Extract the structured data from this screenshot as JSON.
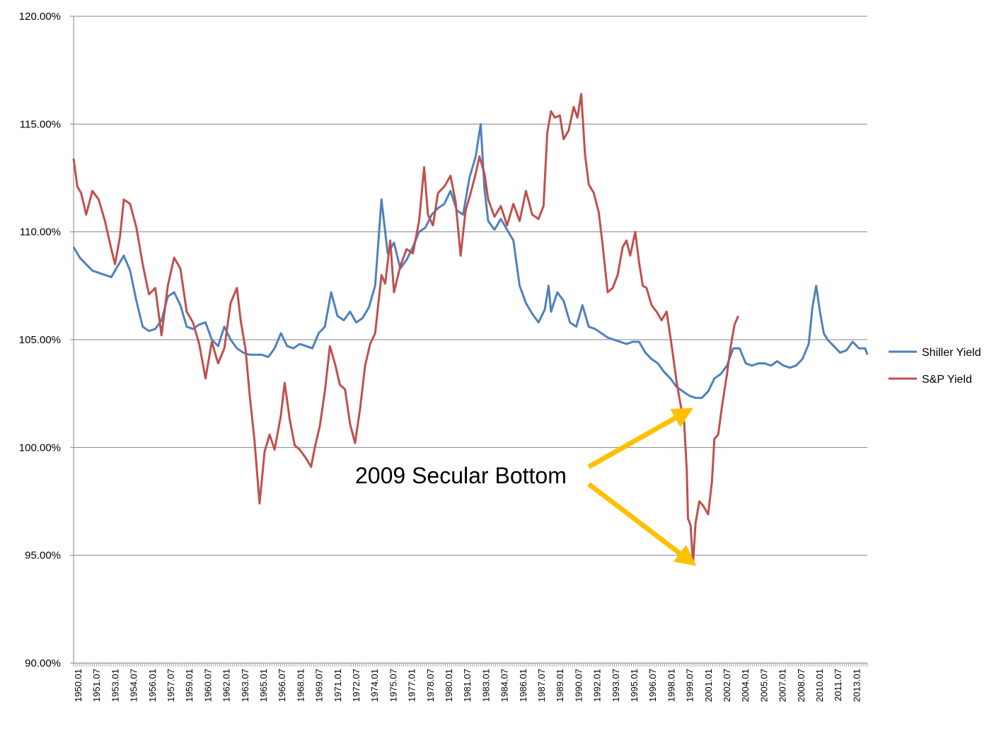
{
  "chart_data": {
    "type": "line",
    "title": "",
    "xlabel": "",
    "ylabel": "",
    "ylim": [
      90,
      120
    ],
    "y_ticks": [
      "90.00%",
      "95.00%",
      "100.00%",
      "105.00%",
      "110.00%",
      "115.00%",
      "120.00%"
    ],
    "x_range": [
      1950.0,
      2013.17
    ],
    "x_tick_labels": [
      "1950.01",
      "1951.07",
      "1953.01",
      "1954.07",
      "1956.01",
      "1957.07",
      "1959.01",
      "1960.07",
      "1962.01",
      "1963.07",
      "1965.01",
      "1966.07",
      "1968.01",
      "1969.07",
      "1971.01",
      "1972.07",
      "1974.01",
      "1975.07",
      "1977.01",
      "1978.07",
      "1980.01",
      "1981.07",
      "1983.01",
      "1984.07",
      "1986.01",
      "1987.07",
      "1989.01",
      "1990.07",
      "1992.01",
      "1993.07",
      "1995.01",
      "1996.07",
      "1998.01",
      "1999.07",
      "2001.01",
      "2002.07",
      "2004.01",
      "2005.07",
      "2007.01",
      "2008.07",
      "2010.01",
      "2011.07",
      "2013.01"
    ],
    "grid": "horizontal",
    "legend": "right",
    "series": [
      {
        "name": "Shiller Yield",
        "color": "#4F81BD",
        "points": [
          [
            1950.0,
            109.3
          ],
          [
            1950.5,
            108.8
          ],
          [
            1951.0,
            108.5
          ],
          [
            1951.5,
            108.2
          ],
          [
            1952.0,
            108.1
          ],
          [
            1952.5,
            108.0
          ],
          [
            1953.0,
            107.9
          ],
          [
            1953.5,
            108.4
          ],
          [
            1954.0,
            108.9
          ],
          [
            1954.5,
            108.2
          ],
          [
            1955.0,
            106.8
          ],
          [
            1955.5,
            105.6
          ],
          [
            1956.0,
            105.4
          ],
          [
            1956.5,
            105.5
          ],
          [
            1957.0,
            105.9
          ],
          [
            1957.5,
            107.0
          ],
          [
            1958.0,
            107.2
          ],
          [
            1958.5,
            106.6
          ],
          [
            1959.0,
            105.6
          ],
          [
            1959.5,
            105.5
          ],
          [
            1960.0,
            105.7
          ],
          [
            1960.5,
            105.8
          ],
          [
            1961.0,
            105.0
          ],
          [
            1961.5,
            104.7
          ],
          [
            1962.0,
            105.6
          ],
          [
            1962.5,
            105.0
          ],
          [
            1963.0,
            104.6
          ],
          [
            1963.5,
            104.4
          ],
          [
            1964.0,
            104.3
          ],
          [
            1964.5,
            104.3
          ],
          [
            1965.0,
            104.3
          ],
          [
            1965.5,
            104.2
          ],
          [
            1966.0,
            104.6
          ],
          [
            1966.5,
            105.3
          ],
          [
            1967.0,
            104.7
          ],
          [
            1967.5,
            104.6
          ],
          [
            1968.0,
            104.8
          ],
          [
            1968.5,
            104.7
          ],
          [
            1969.0,
            104.6
          ],
          [
            1969.5,
            105.3
          ],
          [
            1970.0,
            105.6
          ],
          [
            1970.5,
            107.2
          ],
          [
            1971.0,
            106.1
          ],
          [
            1971.5,
            105.9
          ],
          [
            1972.0,
            106.3
          ],
          [
            1972.5,
            105.8
          ],
          [
            1973.0,
            106.0
          ],
          [
            1973.5,
            106.5
          ],
          [
            1974.0,
            107.5
          ],
          [
            1974.5,
            111.5
          ],
          [
            1975.0,
            109.0
          ],
          [
            1975.5,
            109.5
          ],
          [
            1976.0,
            108.3
          ],
          [
            1976.5,
            108.7
          ],
          [
            1977.0,
            109.3
          ],
          [
            1977.5,
            110.0
          ],
          [
            1978.0,
            110.2
          ],
          [
            1978.5,
            110.8
          ],
          [
            1979.0,
            111.1
          ],
          [
            1979.5,
            111.3
          ],
          [
            1980.0,
            111.9
          ],
          [
            1980.5,
            111.0
          ],
          [
            1981.0,
            110.8
          ],
          [
            1981.5,
            112.5
          ],
          [
            1982.0,
            113.5
          ],
          [
            1982.4,
            115.0
          ],
          [
            1982.7,
            112.0
          ],
          [
            1983.0,
            110.5
          ],
          [
            1983.5,
            110.1
          ],
          [
            1984.0,
            110.6
          ],
          [
            1984.5,
            110.1
          ],
          [
            1985.0,
            109.6
          ],
          [
            1985.5,
            107.5
          ],
          [
            1986.0,
            106.7
          ],
          [
            1986.5,
            106.2
          ],
          [
            1987.0,
            105.8
          ],
          [
            1987.5,
            106.4
          ],
          [
            1987.8,
            107.5
          ],
          [
            1988.0,
            106.3
          ],
          [
            1988.5,
            107.2
          ],
          [
            1989.0,
            106.8
          ],
          [
            1989.5,
            105.8
          ],
          [
            1990.0,
            105.6
          ],
          [
            1990.5,
            106.6
          ],
          [
            1991.0,
            105.6
          ],
          [
            1991.5,
            105.5
          ],
          [
            1992.0,
            105.3
          ],
          [
            1992.5,
            105.1
          ],
          [
            1993.0,
            105.0
          ],
          [
            1993.5,
            104.9
          ],
          [
            1994.0,
            104.8
          ],
          [
            1994.5,
            104.9
          ],
          [
            1995.0,
            104.9
          ],
          [
            1995.5,
            104.4
          ],
          [
            1996.0,
            104.1
          ],
          [
            1996.5,
            103.9
          ],
          [
            1997.0,
            103.5
          ],
          [
            1997.5,
            103.2
          ],
          [
            1998.0,
            102.8
          ],
          [
            1998.5,
            102.6
          ],
          [
            1999.0,
            102.4
          ],
          [
            1999.5,
            102.3
          ],
          [
            2000.0,
            102.3
          ],
          [
            2000.5,
            102.6
          ],
          [
            2001.0,
            103.2
          ],
          [
            2001.5,
            103.4
          ],
          [
            2002.0,
            103.8
          ],
          [
            2002.5,
            104.6
          ],
          [
            2003.0,
            104.6
          ],
          [
            2003.5,
            103.9
          ],
          [
            2004.0,
            103.8
          ],
          [
            2004.5,
            103.9
          ],
          [
            2005.0,
            103.9
          ],
          [
            2005.5,
            103.8
          ],
          [
            2006.0,
            104.0
          ],
          [
            2006.5,
            103.8
          ],
          [
            2007.0,
            103.7
          ],
          [
            2007.5,
            103.8
          ],
          [
            2008.0,
            104.1
          ],
          [
            2008.5,
            104.8
          ],
          [
            2008.8,
            106.5
          ],
          [
            2009.1,
            107.5
          ],
          [
            2009.4,
            106.3
          ],
          [
            2009.7,
            105.3
          ],
          [
            2010.0,
            105.0
          ],
          [
            2010.5,
            104.7
          ],
          [
            2011.0,
            104.4
          ],
          [
            2011.5,
            104.5
          ],
          [
            2012.0,
            104.9
          ],
          [
            2012.5,
            104.6
          ],
          [
            2013.0,
            104.6
          ],
          [
            2013.17,
            104.3
          ]
        ]
      },
      {
        "name": "S&P Yield",
        "color": "#C0504D",
        "points": [
          [
            1950.0,
            113.4
          ],
          [
            1950.3,
            112.1
          ],
          [
            1950.6,
            111.8
          ],
          [
            1951.0,
            110.8
          ],
          [
            1951.5,
            111.9
          ],
          [
            1952.0,
            111.5
          ],
          [
            1952.5,
            110.5
          ],
          [
            1953.0,
            109.2
          ],
          [
            1953.3,
            108.5
          ],
          [
            1953.7,
            109.8
          ],
          [
            1954.0,
            111.5
          ],
          [
            1954.5,
            111.3
          ],
          [
            1955.0,
            110.2
          ],
          [
            1955.5,
            108.5
          ],
          [
            1956.0,
            107.1
          ],
          [
            1956.5,
            107.4
          ],
          [
            1957.0,
            105.2
          ],
          [
            1957.5,
            107.5
          ],
          [
            1958.0,
            108.8
          ],
          [
            1958.5,
            108.3
          ],
          [
            1959.0,
            106.3
          ],
          [
            1959.5,
            105.8
          ],
          [
            1960.0,
            104.8
          ],
          [
            1960.5,
            103.2
          ],
          [
            1961.0,
            104.9
          ],
          [
            1961.5,
            103.9
          ],
          [
            1962.0,
            104.6
          ],
          [
            1962.5,
            106.7
          ],
          [
            1963.0,
            107.4
          ],
          [
            1963.3,
            105.9
          ],
          [
            1963.7,
            104.5
          ],
          [
            1964.0,
            102.5
          ],
          [
            1964.4,
            100.3
          ],
          [
            1964.8,
            97.4
          ],
          [
            1965.2,
            99.8
          ],
          [
            1965.6,
            100.6
          ],
          [
            1966.0,
            99.9
          ],
          [
            1966.5,
            101.5
          ],
          [
            1966.8,
            103.0
          ],
          [
            1967.2,
            101.3
          ],
          [
            1967.6,
            100.1
          ],
          [
            1968.0,
            99.9
          ],
          [
            1968.5,
            99.5
          ],
          [
            1968.9,
            99.1
          ],
          [
            1969.2,
            100.0
          ],
          [
            1969.6,
            101.0
          ],
          [
            1970.0,
            102.6
          ],
          [
            1970.4,
            104.7
          ],
          [
            1970.8,
            103.9
          ],
          [
            1971.2,
            102.9
          ],
          [
            1971.6,
            102.7
          ],
          [
            1972.0,
            101.1
          ],
          [
            1972.4,
            100.2
          ],
          [
            1972.8,
            101.8
          ],
          [
            1973.2,
            103.8
          ],
          [
            1973.6,
            104.8
          ],
          [
            1974.0,
            105.3
          ],
          [
            1974.5,
            108.0
          ],
          [
            1974.8,
            107.6
          ],
          [
            1975.2,
            109.6
          ],
          [
            1975.5,
            107.2
          ],
          [
            1976.0,
            108.4
          ],
          [
            1976.5,
            109.2
          ],
          [
            1977.0,
            109.0
          ],
          [
            1977.5,
            110.5
          ],
          [
            1977.9,
            113.0
          ],
          [
            1978.2,
            110.8
          ],
          [
            1978.6,
            110.3
          ],
          [
            1979.0,
            111.8
          ],
          [
            1979.5,
            112.1
          ],
          [
            1980.0,
            112.6
          ],
          [
            1980.4,
            111.4
          ],
          [
            1980.8,
            108.9
          ],
          [
            1981.2,
            111.0
          ],
          [
            1981.6,
            111.8
          ],
          [
            1982.0,
            112.7
          ],
          [
            1982.3,
            113.5
          ],
          [
            1982.7,
            112.7
          ],
          [
            1983.0,
            111.5
          ],
          [
            1983.5,
            110.7
          ],
          [
            1984.0,
            111.2
          ],
          [
            1984.5,
            110.3
          ],
          [
            1985.0,
            111.3
          ],
          [
            1985.5,
            110.5
          ],
          [
            1986.0,
            111.9
          ],
          [
            1986.5,
            110.8
          ],
          [
            1987.0,
            110.6
          ],
          [
            1987.4,
            111.2
          ],
          [
            1987.7,
            114.6
          ],
          [
            1988.0,
            115.6
          ],
          [
            1988.3,
            115.3
          ],
          [
            1988.7,
            115.4
          ],
          [
            1989.0,
            114.3
          ],
          [
            1989.4,
            114.7
          ],
          [
            1989.8,
            115.8
          ],
          [
            1990.1,
            115.3
          ],
          [
            1990.4,
            116.4
          ],
          [
            1990.7,
            113.6
          ],
          [
            1991.0,
            112.2
          ],
          [
            1991.4,
            111.8
          ],
          [
            1991.8,
            110.9
          ],
          [
            1992.1,
            109.4
          ],
          [
            1992.5,
            107.2
          ],
          [
            1992.9,
            107.4
          ],
          [
            1993.3,
            108.0
          ],
          [
            1993.7,
            109.3
          ],
          [
            1994.0,
            109.6
          ],
          [
            1994.3,
            108.9
          ],
          [
            1994.7,
            110.0
          ],
          [
            1995.0,
            108.6
          ],
          [
            1995.3,
            107.5
          ],
          [
            1995.6,
            107.4
          ],
          [
            1996.0,
            106.6
          ],
          [
            1996.4,
            106.3
          ],
          [
            1996.8,
            105.9
          ],
          [
            1997.2,
            106.3
          ],
          [
            1997.6,
            104.7
          ],
          [
            1998.0,
            103.0
          ],
          [
            1998.3,
            102.0
          ],
          [
            1998.6,
            101.1
          ],
          [
            1998.8,
            98.9
          ],
          [
            1998.9,
            96.7
          ],
          [
            1999.1,
            96.4
          ],
          [
            1999.3,
            94.6
          ],
          [
            1999.5,
            96.5
          ],
          [
            1999.8,
            97.5
          ],
          [
            2000.1,
            97.3
          ],
          [
            2000.5,
            96.9
          ],
          [
            2000.8,
            98.4
          ],
          [
            2001.0,
            100.4
          ],
          [
            2001.3,
            100.6
          ],
          [
            2001.6,
            101.9
          ],
          [
            2002.0,
            103.4
          ],
          [
            2002.3,
            104.7
          ],
          [
            2002.6,
            105.7
          ],
          [
            2002.9,
            106.1
          ]
        ]
      }
    ],
    "annotation": {
      "text": "2009 Secular Bottom",
      "color": "#FFC000",
      "arrows": [
        {
          "from": [
            1991.0,
            99.1
          ],
          "to": [
            1998.6,
            101.6
          ]
        },
        {
          "from": [
            1991.0,
            98.3
          ],
          "to": [
            1998.9,
            94.8
          ]
        }
      ]
    }
  }
}
